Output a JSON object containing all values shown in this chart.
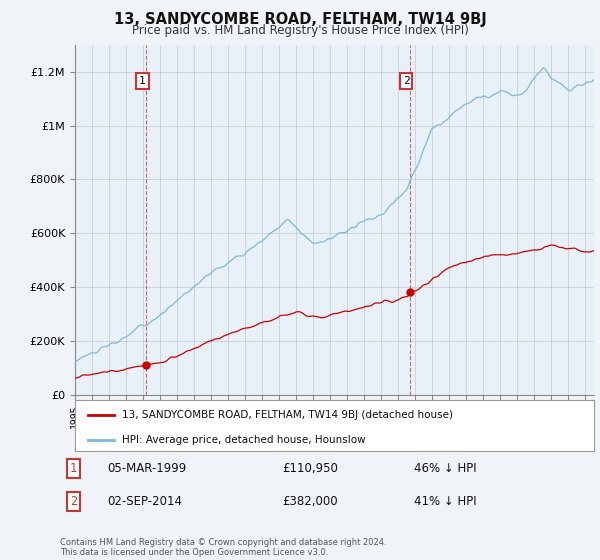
{
  "title": "13, SANDYCOMBE ROAD, FELTHAM, TW14 9BJ",
  "subtitle": "Price paid vs. HM Land Registry's House Price Index (HPI)",
  "hpi_label": "HPI: Average price, detached house, Hounslow",
  "property_label": "13, SANDYCOMBE ROAD, FELTHAM, TW14 9BJ (detached house)",
  "sale1_label": "05-MAR-1999",
  "sale1_price": "£110,950",
  "sale1_pct": "46% ↓ HPI",
  "sale2_label": "02-SEP-2014",
  "sale2_price": "£382,000",
  "sale2_pct": "41% ↓ HPI",
  "hpi_color": "#7db9d8",
  "property_color": "#cc0000",
  "background_color": "#f0f4f8",
  "plot_bg_color": "#e8f0f8",
  "grid_color": "#c0c8d8",
  "ylim": [
    0,
    1300000
  ],
  "yticks": [
    0,
    200000,
    400000,
    600000,
    800000,
    1000000,
    1200000
  ],
  "ytick_labels": [
    "£0",
    "£200K",
    "£400K",
    "£600K",
    "£800K",
    "£1M",
    "£1.2M"
  ],
  "sale1_year": 1999.17,
  "sale1_value": 110950,
  "sale2_year": 2014.67,
  "sale2_value": 382000,
  "footnote": "Contains HM Land Registry data © Crown copyright and database right 2024.\nThis data is licensed under the Open Government Licence v3.0.",
  "xlim_left": 1995,
  "xlim_right": 2025.5
}
